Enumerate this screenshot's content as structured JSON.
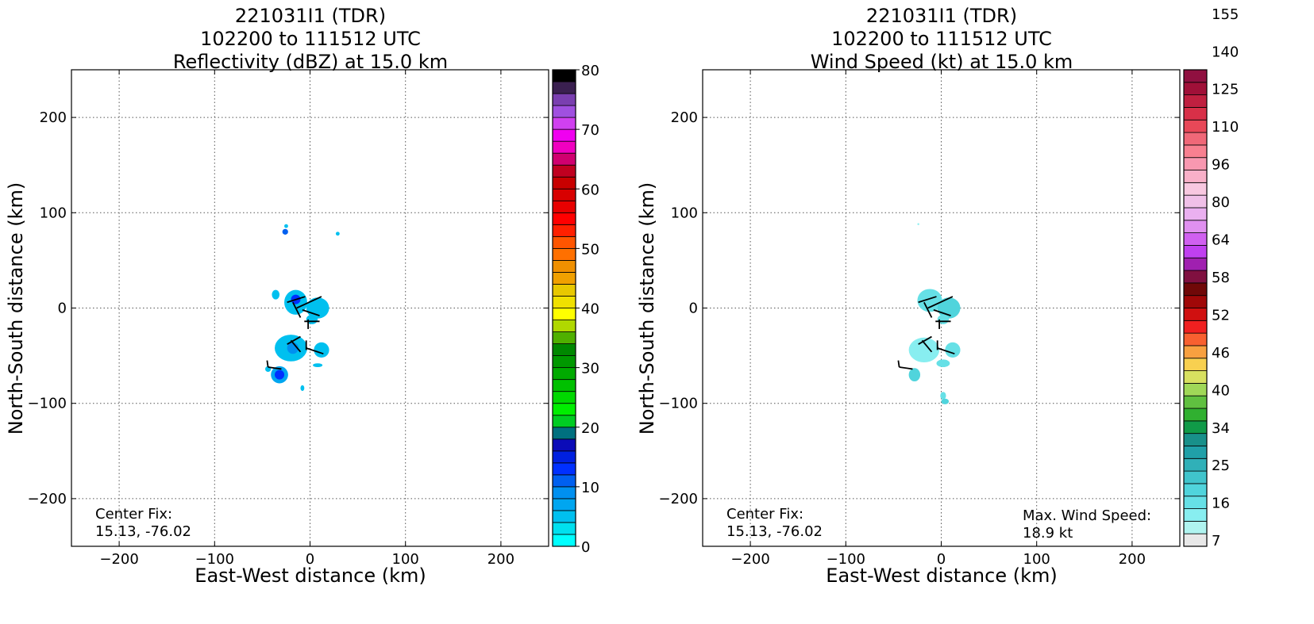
{
  "chart_data": [
    {
      "type": "heatmap",
      "title_lines": [
        "221031I1 (TDR)",
        "102200 to 111512 UTC",
        "Reflectivity (dBZ) at 15.0 km"
      ],
      "xlabel": "East-West distance (km)",
      "ylabel": "North-South distance (km)",
      "xlim": [
        -250,
        250
      ],
      "ylim": [
        -250,
        250
      ],
      "xticks": [
        -200,
        -100,
        0,
        100,
        200
      ],
      "yticks": [
        -200,
        -100,
        0,
        100,
        200
      ],
      "xtick_labels": [
        "−200",
        "−100",
        "0",
        "100",
        "200"
      ],
      "ytick_labels": [
        "−200",
        "−100",
        "0",
        "100",
        "200"
      ],
      "grid": true,
      "annotation": {
        "line1": "Center Fix:",
        "line2": "15.13, -76.02"
      },
      "colorbar": {
        "min": 0,
        "max": 80,
        "ticks": [
          0,
          10,
          20,
          30,
          40,
          50,
          60,
          70,
          80
        ],
        "colors": [
          "#00ffff",
          "#00e0ef",
          "#00c0ef",
          "#00a6f0",
          "#0090f0",
          "#0060f0",
          "#0030ff",
          "#0020e0",
          "#0b0bb8",
          "#00707f",
          "#00cc22",
          "#00ee00",
          "#00d800",
          "#00c000",
          "#00aa00",
          "#009800",
          "#008800",
          "#50b000",
          "#b0d800",
          "#ffff00",
          "#f0e000",
          "#e8c800",
          "#f0a000",
          "#f09000",
          "#ff7000",
          "#ff5500",
          "#ff2000",
          "#ff0000",
          "#e80000",
          "#d80000",
          "#c80000",
          "#c00020",
          "#d00070",
          "#f000c0",
          "#f000f0",
          "#d040f0",
          "#a050e0",
          "#7a3fb0",
          "#3a2050",
          "#000000"
        ]
      },
      "echo_regions": [
        {
          "x": -26,
          "y": 80,
          "rx": 3,
          "ry": 3,
          "value": 10
        },
        {
          "x": -25,
          "y": 86,
          "rx": 2,
          "ry": 2,
          "value": 4
        },
        {
          "x": 29,
          "y": 78,
          "rx": 2,
          "ry": 2,
          "value": 4
        },
        {
          "x": -36,
          "y": 14,
          "rx": 4,
          "ry": 5,
          "value": 4
        },
        {
          "x": -15,
          "y": 6,
          "rx": 12,
          "ry": 13,
          "value": 4
        },
        {
          "x": -15,
          "y": 9,
          "rx": 5,
          "ry": 5,
          "value": 13
        },
        {
          "x": 8,
          "y": 0,
          "rx": 12,
          "ry": 11,
          "value": 4
        },
        {
          "x": 2,
          "y": -12,
          "rx": 6,
          "ry": 5,
          "value": 4
        },
        {
          "x": -20,
          "y": -42,
          "rx": 17,
          "ry": 14,
          "value": 4
        },
        {
          "x": -18,
          "y": -42,
          "rx": 6,
          "ry": 6,
          "value": 8
        },
        {
          "x": 12,
          "y": -44,
          "rx": 8,
          "ry": 8,
          "value": 4
        },
        {
          "x": 8,
          "y": -60,
          "rx": 5,
          "ry": 2,
          "value": 4
        },
        {
          "x": -44,
          "y": -64,
          "rx": 3,
          "ry": 3,
          "value": 4
        },
        {
          "x": -32,
          "y": -70,
          "rx": 9,
          "ry": 9,
          "value": 6
        },
        {
          "x": -32,
          "y": -70,
          "rx": 5,
          "ry": 5,
          "value": 13
        },
        {
          "x": -8,
          "y": -84,
          "rx": 2,
          "ry": 3,
          "value": 4
        }
      ]
    },
    {
      "type": "heatmap",
      "title_lines": [
        "221031I1 (TDR)",
        "102200 to 111512 UTC",
        "Wind Speed (kt) at 15.0 km"
      ],
      "xlabel": "East-West distance (km)",
      "ylabel": "North-South distance (km)",
      "xlim": [
        -250,
        250
      ],
      "ylim": [
        -250,
        250
      ],
      "xticks": [
        -200,
        -100,
        0,
        100,
        200
      ],
      "yticks": [
        -200,
        -100,
        0,
        100,
        200
      ],
      "xtick_labels": [
        "−200",
        "−100",
        "0",
        "100",
        "200"
      ],
      "ytick_labels": [
        "−200",
        "−100",
        "0",
        "100",
        "200"
      ],
      "grid": true,
      "annotation": {
        "line1": "Center Fix:",
        "line2": "15.13, -76.02"
      },
      "max_wind": {
        "line1": "Max. Wind Speed:",
        "line2": "18.9 kt"
      },
      "colorbar": {
        "tick_labels": [
          "7",
          "16",
          "25",
          "34",
          "40",
          "46",
          "52",
          "58",
          "64",
          "80",
          "96",
          "110",
          "125",
          "140",
          "155"
        ],
        "tick_bins": [
          0,
          3,
          6,
          9,
          12,
          15,
          18,
          21,
          24,
          27,
          30,
          33,
          36,
          39,
          42
        ],
        "colors": [
          "#e8e8e8",
          "#b0f4f0",
          "#88eef0",
          "#66e0e6",
          "#50d4dc",
          "#40c4cc",
          "#30b0b8",
          "#20a0a8",
          "#18908a",
          "#109a48",
          "#30b030",
          "#60c040",
          "#a0d858",
          "#d8e060",
          "#f8d050",
          "#f8a040",
          "#f86030",
          "#f02020",
          "#d01010",
          "#a00808",
          "#700808",
          "#801040",
          "#a020b0",
          "#c040f0",
          "#d060f0",
          "#e090f0",
          "#eab0f0",
          "#f0c0e8",
          "#f8c8e0",
          "#f8b0c8",
          "#f898b0",
          "#f88090",
          "#f06878",
          "#e84858",
          "#d83048",
          "#c02040",
          "#a01038",
          "#901040"
        ]
      },
      "wind_regions": [
        {
          "x": -24,
          "y": 88,
          "rx": 1,
          "ry": 1,
          "value": 2
        },
        {
          "x": -12,
          "y": 8,
          "rx": 13,
          "ry": 12,
          "value": 3
        },
        {
          "x": 8,
          "y": 0,
          "rx": 12,
          "ry": 11,
          "value": 4
        },
        {
          "x": 2,
          "y": -12,
          "rx": 6,
          "ry": 5,
          "value": 3
        },
        {
          "x": -18,
          "y": -44,
          "rx": 16,
          "ry": 13,
          "value": 2
        },
        {
          "x": 12,
          "y": -44,
          "rx": 8,
          "ry": 8,
          "value": 3
        },
        {
          "x": 2,
          "y": -58,
          "rx": 7,
          "ry": 4,
          "value": 3
        },
        {
          "x": -28,
          "y": -70,
          "rx": 6,
          "ry": 7,
          "value": 4
        },
        {
          "x": 2,
          "y": -92,
          "rx": 3,
          "ry": 4,
          "value": 3
        },
        {
          "x": 4,
          "y": -98,
          "rx": 4,
          "ry": 3,
          "value": 4
        }
      ]
    }
  ],
  "wind_barbs": [
    {
      "x1": -24,
      "y1": 6,
      "x2": -5,
      "y2": 12
    },
    {
      "x1": -14,
      "y1": 0,
      "x2": 12,
      "y2": 12
    },
    {
      "x1": -10,
      "y1": -10,
      "x2": -18,
      "y2": 6
    },
    {
      "x1": 10,
      "y1": -8,
      "x2": -8,
      "y2": -2
    },
    {
      "x1": -2,
      "y1": -22,
      "x2": -2,
      "y2": -12
    },
    {
      "x1": 10,
      "y1": -14,
      "x2": -6,
      "y2": -14
    },
    {
      "x1": -24,
      "y1": -38,
      "x2": -10,
      "y2": -30
    },
    {
      "x1": -10,
      "y1": -46,
      "x2": -20,
      "y2": -34
    },
    {
      "x1": -4,
      "y1": -44,
      "x2": -4,
      "y2": -34
    },
    {
      "x1": 14,
      "y1": -48,
      "x2": -4,
      "y2": -42
    },
    {
      "x1": -30,
      "y1": -64,
      "x2": -44,
      "y2": -62
    },
    {
      "x1": -44,
      "y1": -62,
      "x2": -45,
      "y2": -55
    }
  ]
}
